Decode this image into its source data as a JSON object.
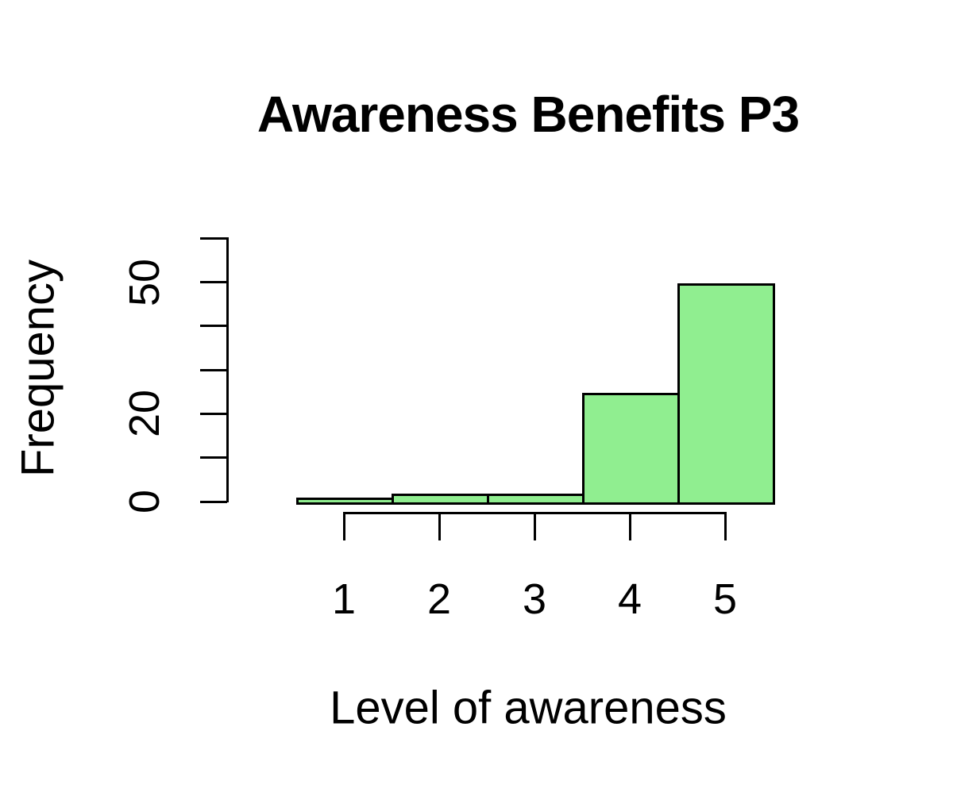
{
  "chart_data": {
    "type": "bar",
    "variant": "histogram",
    "title": "Awareness Benefits P3",
    "xlabel": "Level of awareness",
    "ylabel": "Frequency",
    "categories": [
      1,
      2,
      3,
      4,
      5
    ],
    "values": [
      1,
      2,
      2,
      25,
      50
    ],
    "x_ticks": [
      "1",
      "2",
      "3",
      "4",
      "5"
    ],
    "y_ticks": [
      0,
      10,
      20,
      30,
      40,
      50,
      60
    ],
    "y_labeled_ticks": [
      0,
      20,
      50
    ],
    "ylim": [
      0,
      60
    ],
    "grid": false,
    "legend": false,
    "bar_fill_color": "#90EE90",
    "bar_border_color": "#000000",
    "axis_color": "#000000",
    "text_color": "#000000"
  }
}
